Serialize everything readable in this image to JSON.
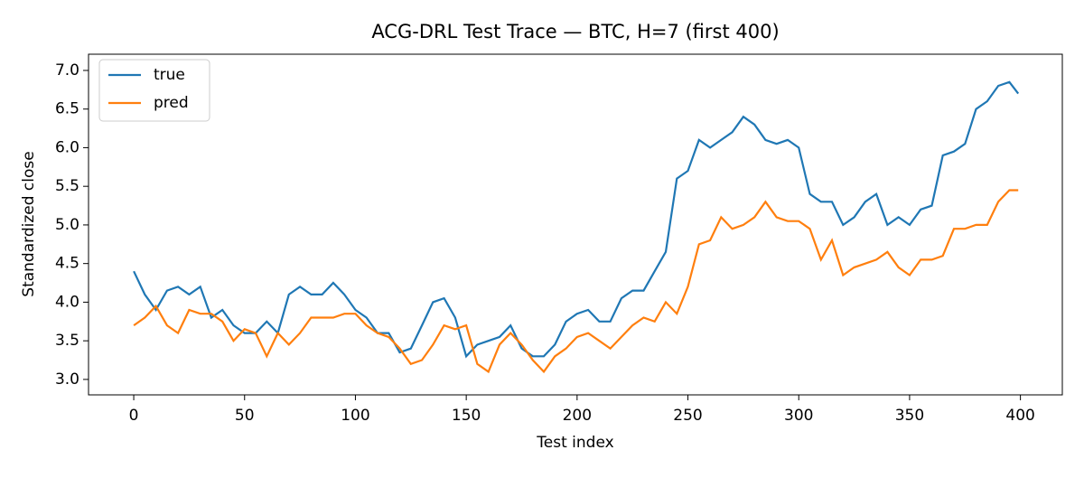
{
  "chart_data": {
    "type": "line",
    "title": "ACG-DRL Test Trace — BTC, H=7 (first 400)",
    "x_label": "Test index",
    "y_label": "Standardized close",
    "x": [
      0,
      5,
      10,
      15,
      20,
      25,
      30,
      35,
      40,
      45,
      50,
      55,
      60,
      65,
      70,
      75,
      80,
      85,
      90,
      95,
      100,
      105,
      110,
      115,
      120,
      125,
      130,
      135,
      140,
      145,
      150,
      155,
      160,
      165,
      170,
      175,
      180,
      185,
      190,
      195,
      200,
      205,
      210,
      215,
      220,
      225,
      230,
      235,
      240,
      245,
      250,
      255,
      260,
      265,
      270,
      275,
      280,
      285,
      290,
      295,
      300,
      305,
      310,
      315,
      320,
      325,
      330,
      335,
      340,
      345,
      350,
      355,
      360,
      365,
      370,
      375,
      380,
      385,
      390,
      395,
      399
    ],
    "series": [
      {
        "name": "true",
        "color": "#1f77b4",
        "values": [
          4.4,
          4.1,
          3.9,
          4.15,
          4.2,
          4.1,
          4.2,
          3.8,
          3.9,
          3.7,
          3.6,
          3.6,
          3.75,
          3.6,
          4.1,
          4.2,
          4.1,
          4.1,
          4.25,
          4.1,
          3.9,
          3.8,
          3.6,
          3.6,
          3.35,
          3.4,
          3.7,
          4.0,
          4.05,
          3.8,
          3.3,
          3.45,
          3.5,
          3.55,
          3.7,
          3.4,
          3.3,
          3.3,
          3.45,
          3.75,
          3.85,
          3.9,
          3.75,
          3.75,
          4.05,
          4.15,
          4.15,
          4.4,
          4.65,
          5.6,
          5.7,
          6.1,
          6.0,
          6.1,
          6.2,
          6.4,
          6.3,
          6.1,
          6.05,
          6.1,
          6.0,
          5.4,
          5.3,
          5.3,
          5.0,
          5.1,
          5.3,
          5.4,
          5.0,
          5.1,
          5.0,
          5.2,
          5.25,
          5.9,
          5.95,
          6.05,
          6.5,
          6.6,
          6.8,
          6.85,
          6.7
        ]
      },
      {
        "name": "pred",
        "color": "#ff7f0e",
        "values": [
          3.7,
          3.8,
          3.95,
          3.7,
          3.6,
          3.9,
          3.85,
          3.85,
          3.75,
          3.5,
          3.65,
          3.6,
          3.3,
          3.6,
          3.45,
          3.6,
          3.8,
          3.8,
          3.8,
          3.85,
          3.85,
          3.7,
          3.6,
          3.55,
          3.4,
          3.2,
          3.25,
          3.45,
          3.7,
          3.65,
          3.7,
          3.2,
          3.1,
          3.45,
          3.6,
          3.45,
          3.25,
          3.1,
          3.3,
          3.4,
          3.55,
          3.6,
          3.5,
          3.4,
          3.55,
          3.7,
          3.8,
          3.75,
          4.0,
          3.85,
          4.2,
          4.75,
          4.8,
          5.1,
          4.95,
          5.0,
          5.1,
          5.3,
          5.1,
          5.05,
          5.05,
          4.95,
          4.55,
          4.8,
          4.35,
          4.45,
          4.5,
          4.55,
          4.65,
          4.45,
          4.35,
          4.55,
          4.55,
          4.6,
          4.95,
          4.95,
          5.0,
          5.0,
          5.3,
          5.45,
          5.45
        ]
      }
    ],
    "xlim": [
      -20.4,
      418.9
    ],
    "ylim": [
      2.8,
      7.21
    ],
    "xticks": [
      0,
      50,
      100,
      150,
      200,
      250,
      300,
      350,
      400
    ],
    "yticks": [
      {
        "value": 3,
        "label": "3.0"
      },
      {
        "value": 3.5,
        "label": "3.5"
      },
      {
        "value": 4,
        "label": "4.0"
      },
      {
        "value": 4.5,
        "label": "4.5"
      },
      {
        "value": 5,
        "label": "5.0"
      },
      {
        "value": 5.5,
        "label": "5.5"
      },
      {
        "value": 6,
        "label": "6.0"
      },
      {
        "value": 6.5,
        "label": "6.5"
      },
      {
        "value": 7,
        "label": "7.0"
      }
    ],
    "legend": "upper left"
  }
}
